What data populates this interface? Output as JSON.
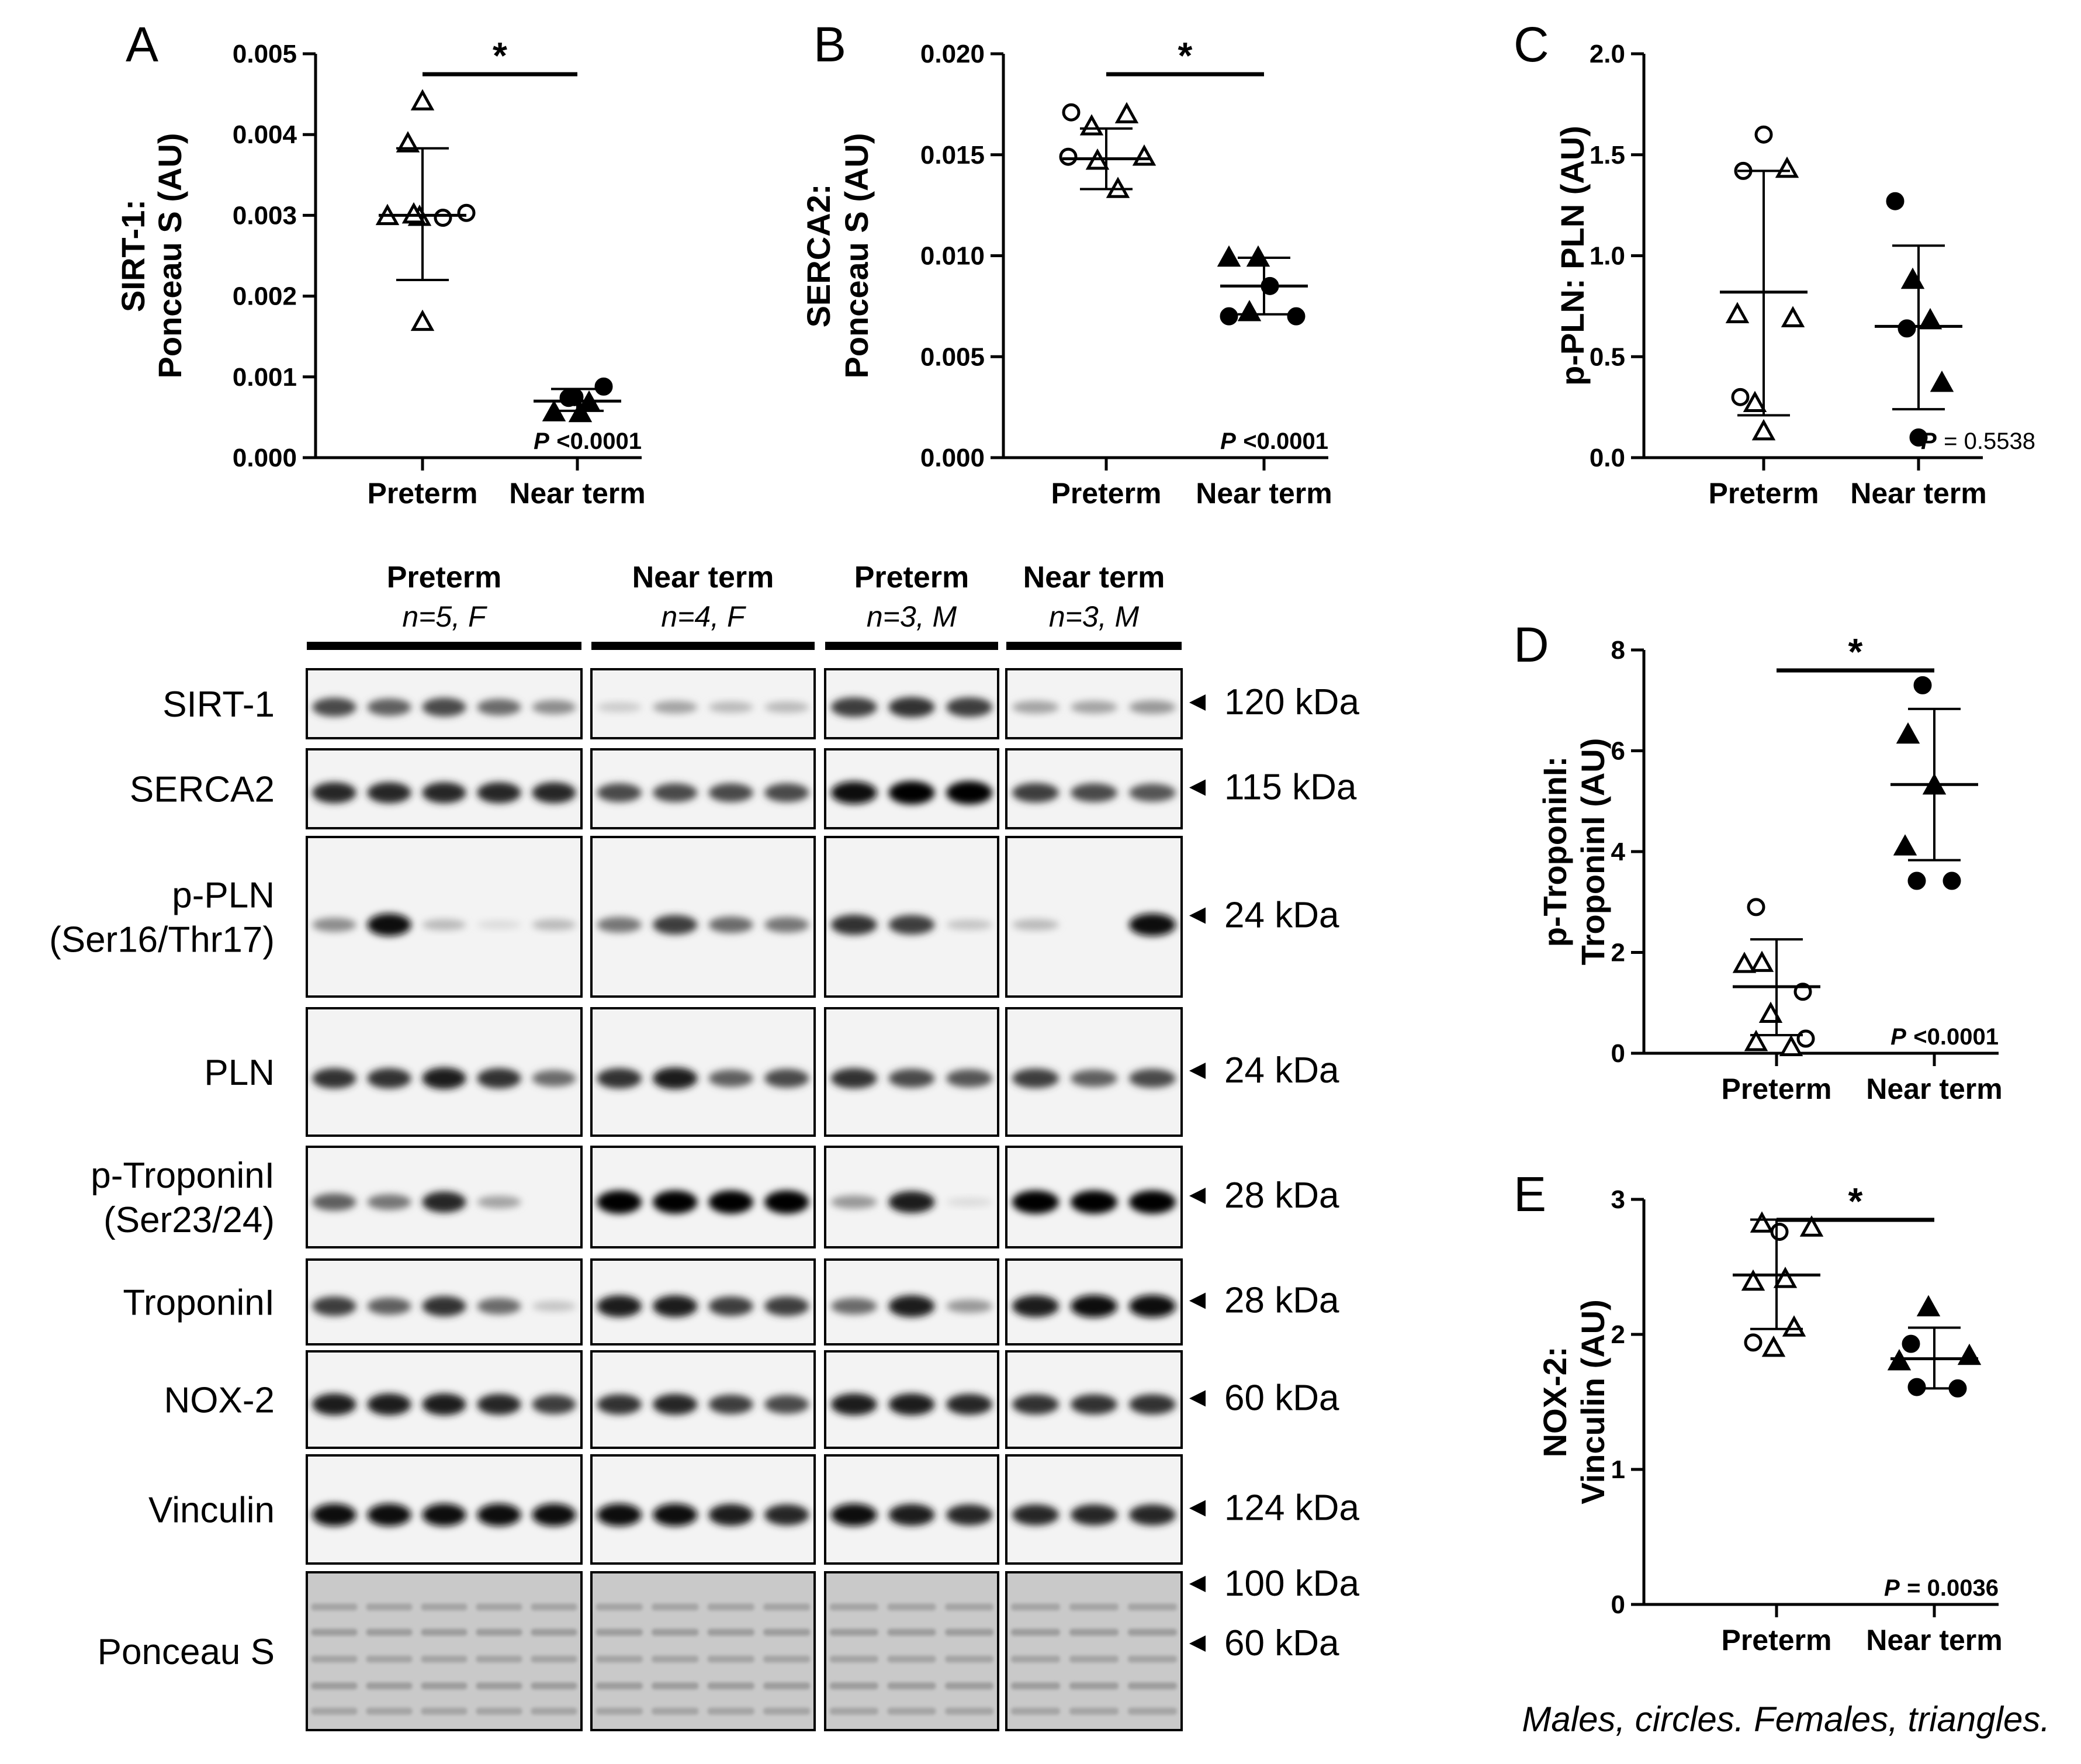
{
  "legend": "Males, circles. Females, triangles.",
  "colors": {
    "male_marker": "#000000",
    "female_marker": "#000000",
    "axis": "#000000",
    "blot_bg": "#f2f2f2"
  },
  "chart_data": [
    {
      "panel": "A",
      "type": "scatter",
      "ylabel_lines": [
        "SIRT-1:",
        "Ponceau S (AU)"
      ],
      "categories": [
        "Preterm",
        "Near term"
      ],
      "ylim": [
        0,
        0.005
      ],
      "yticks": [
        "0.000",
        "0.001",
        "0.002",
        "0.003",
        "0.004",
        "0.005"
      ],
      "ytick_values": [
        0,
        0.001,
        0.002,
        0.003,
        0.004,
        0.005
      ],
      "significance": "*",
      "p_label": "P",
      "p_text": "<0.0001",
      "groups": [
        {
          "name": "Preterm",
          "mean": 0.003,
          "sd_low": 0.0022,
          "sd_high": 0.00383,
          "points": [
            {
              "value": 0.00441,
              "sex": "F"
            },
            {
              "value": 0.00389,
              "sex": "F"
            },
            {
              "value": 0.00299,
              "sex": "F"
            },
            {
              "value": 0.00297,
              "sex": "M"
            },
            {
              "value": 0.00303,
              "sex": "M"
            },
            {
              "value": 0.00298,
              "sex": "F"
            },
            {
              "value": 0.00301,
              "sex": "F"
            },
            {
              "value": 0.00168,
              "sex": "F"
            }
          ]
        },
        {
          "name": "Near term",
          "mean": 0.0007,
          "sd_low": 0.00058,
          "sd_high": 0.00085,
          "points": [
            {
              "value": 0.00056,
              "sex": "F"
            },
            {
              "value": 0.00075,
              "sex": "M"
            },
            {
              "value": 0.00068,
              "sex": "F"
            },
            {
              "value": 0.00088,
              "sex": "M"
            },
            {
              "value": 0.00055,
              "sex": "F"
            },
            {
              "value": 0.00074,
              "sex": "M"
            }
          ]
        }
      ]
    },
    {
      "panel": "B",
      "type": "scatter",
      "ylabel_lines": [
        "SERCA2:",
        "Ponceau S (AU)"
      ],
      "categories": [
        "Preterm",
        "Near term"
      ],
      "ylim": [
        0,
        0.02
      ],
      "yticks": [
        "0.000",
        "0.005",
        "0.010",
        "0.015",
        "0.020"
      ],
      "ytick_values": [
        0,
        0.005,
        0.01,
        0.015,
        0.02
      ],
      "significance": "*",
      "p_label": "P",
      "p_text": "<0.0001",
      "groups": [
        {
          "name": "Preterm",
          "mean": 0.0148,
          "sd_low": 0.0133,
          "sd_high": 0.0163,
          "points": [
            {
              "value": 0.0171,
              "sex": "M"
            },
            {
              "value": 0.017,
              "sex": "F"
            },
            {
              "value": 0.0164,
              "sex": "F"
            },
            {
              "value": 0.0149,
              "sex": "M"
            },
            {
              "value": 0.0147,
              "sex": "F"
            },
            {
              "value": 0.0149,
              "sex": "F"
            },
            {
              "value": 0.0133,
              "sex": "F"
            }
          ]
        },
        {
          "name": "Near term",
          "mean": 0.0085,
          "sd_low": 0.0071,
          "sd_high": 0.0099,
          "points": [
            {
              "value": 0.0099,
              "sex": "F"
            },
            {
              "value": 0.0099,
              "sex": "F"
            },
            {
              "value": 0.0085,
              "sex": "M"
            },
            {
              "value": 0.0072,
              "sex": "F"
            },
            {
              "value": 0.007,
              "sex": "M"
            },
            {
              "value": 0.007,
              "sex": "M"
            }
          ]
        }
      ]
    },
    {
      "panel": "C",
      "type": "scatter",
      "ylabel_lines": [
        "p-PLN: PLN (AU)"
      ],
      "categories": [
        "Preterm",
        "Near term"
      ],
      "ylim": [
        0,
        2
      ],
      "yticks": [
        "0.0",
        "0.5",
        "1.0",
        "1.5",
        "2.0"
      ],
      "ytick_values": [
        0,
        0.5,
        1,
        1.5,
        2
      ],
      "significance": "",
      "p_label": "P",
      "p_text": "= 0.5538",
      "groups": [
        {
          "name": "Preterm",
          "mean": 0.82,
          "sd_low": 0.21,
          "sd_high": 1.42,
          "points": [
            {
              "value": 1.6,
              "sex": "M"
            },
            {
              "value": 1.42,
              "sex": "M"
            },
            {
              "value": 1.43,
              "sex": "F"
            },
            {
              "value": 0.71,
              "sex": "F"
            },
            {
              "value": 0.69,
              "sex": "F"
            },
            {
              "value": 0.3,
              "sex": "M"
            },
            {
              "value": 0.27,
              "sex": "F"
            },
            {
              "value": 0.13,
              "sex": "F"
            }
          ]
        },
        {
          "name": "Near term",
          "mean": 0.65,
          "sd_low": 0.24,
          "sd_high": 1.05,
          "points": [
            {
              "value": 1.27,
              "sex": "M"
            },
            {
              "value": 0.88,
              "sex": "F"
            },
            {
              "value": 0.68,
              "sex": "F"
            },
            {
              "value": 0.64,
              "sex": "M"
            },
            {
              "value": 0.37,
              "sex": "F"
            },
            {
              "value": 0.1,
              "sex": "M"
            }
          ]
        }
      ]
    },
    {
      "panel": "D",
      "type": "scatter",
      "ylabel_lines": [
        "p-TroponinI:",
        "TroponinI (AU)"
      ],
      "categories": [
        "Preterm",
        "Near term"
      ],
      "ylim": [
        0,
        8
      ],
      "yticks": [
        "0",
        "2",
        "4",
        "6",
        "8"
      ],
      "ytick_values": [
        0,
        2,
        4,
        6,
        8
      ],
      "significance": "*",
      "p_label": "P",
      "p_text": "<0.0001",
      "groups": [
        {
          "name": "Preterm",
          "mean": 1.32,
          "sd_low": 0.36,
          "sd_high": 2.26,
          "points": [
            {
              "value": 2.9,
              "sex": "M"
            },
            {
              "value": 1.79,
              "sex": "F"
            },
            {
              "value": 1.77,
              "sex": "F"
            },
            {
              "value": 1.22,
              "sex": "M"
            },
            {
              "value": 0.78,
              "sex": "F"
            },
            {
              "value": 0.22,
              "sex": "F"
            },
            {
              "value": 0.29,
              "sex": "M"
            },
            {
              "value": 0.12,
              "sex": "F"
            }
          ]
        },
        {
          "name": "Near term",
          "mean": 5.33,
          "sd_low": 3.83,
          "sd_high": 6.83,
          "points": [
            {
              "value": 7.3,
              "sex": "M"
            },
            {
              "value": 6.32,
              "sex": "F"
            },
            {
              "value": 5.31,
              "sex": "F"
            },
            {
              "value": 4.1,
              "sex": "F"
            },
            {
              "value": 3.42,
              "sex": "M"
            },
            {
              "value": 3.42,
              "sex": "M"
            }
          ]
        }
      ]
    },
    {
      "panel": "E",
      "type": "scatter",
      "ylabel_lines": [
        "NOX-2:",
        "Vinculin (AU)"
      ],
      "categories": [
        "Preterm",
        "Near term"
      ],
      "ylim": [
        0,
        3
      ],
      "yticks": [
        "0",
        "1",
        "2",
        "3"
      ],
      "ytick_values": [
        0,
        1,
        2,
        3
      ],
      "significance": "*",
      "p_label": "P",
      "p_text": "= 0.0036",
      "groups": [
        {
          "name": "Preterm",
          "mean": 2.44,
          "sd_low": 2.04,
          "sd_high": 2.85,
          "points": [
            {
              "value": 2.82,
              "sex": "F"
            },
            {
              "value": 2.76,
              "sex": "M"
            },
            {
              "value": 2.79,
              "sex": "F"
            },
            {
              "value": 2.41,
              "sex": "F"
            },
            {
              "value": 2.39,
              "sex": "F"
            },
            {
              "value": 1.9,
              "sex": "F"
            },
            {
              "value": 1.94,
              "sex": "M"
            },
            {
              "value": 2.05,
              "sex": "F"
            }
          ]
        },
        {
          "name": "Near term",
          "mean": 1.82,
          "sd_low": 1.6,
          "sd_high": 2.05,
          "points": [
            {
              "value": 2.2,
              "sex": "F"
            },
            {
              "value": 1.93,
              "sex": "M"
            },
            {
              "value": 1.84,
              "sex": "F"
            },
            {
              "value": 1.8,
              "sex": "F"
            },
            {
              "value": 1.6,
              "sex": "M"
            },
            {
              "value": 1.61,
              "sex": "M"
            }
          ]
        }
      ]
    }
  ],
  "blot": {
    "groups": [
      {
        "title": "Preterm",
        "n": "n=5, F",
        "lanes": 5
      },
      {
        "title": "Near term",
        "n": "n=4, F",
        "lanes": 4
      },
      {
        "title": "Preterm",
        "n": "n=3, M",
        "lanes": 3
      },
      {
        "title": "Near term",
        "n": "n=3, M",
        "lanes": 3
      }
    ],
    "rows": [
      {
        "label": [
          "SIRT-1"
        ],
        "kda": [
          "120 kDa"
        ],
        "intensity": [
          [
            0.7,
            0.6,
            0.7,
            0.55,
            0.4
          ],
          [
            0.12,
            0.3,
            0.2,
            0.2
          ],
          [
            0.75,
            0.8,
            0.75
          ],
          [
            0.3,
            0.3,
            0.35
          ]
        ]
      },
      {
        "label": [
          "SERCA2"
        ],
        "kda": [
          "115 kDa"
        ],
        "intensity": [
          [
            0.85,
            0.85,
            0.85,
            0.85,
            0.85
          ],
          [
            0.7,
            0.7,
            0.7,
            0.7
          ],
          [
            0.95,
            1,
            1
          ],
          [
            0.75,
            0.7,
            0.65
          ]
        ]
      },
      {
        "label": [
          "p-PLN",
          "(Ser16/Thr17)"
        ],
        "kda": [
          "24 kDa"
        ],
        "intensity": [
          [
            0.4,
            0.95,
            0.2,
            0.05,
            0.2
          ],
          [
            0.5,
            0.75,
            0.55,
            0.5
          ],
          [
            0.8,
            0.75,
            0.15
          ],
          [
            0.2,
            0.0,
            0.95
          ]
        ]
      },
      {
        "label": [
          "PLN"
        ],
        "kda": [
          "24 kDa"
        ],
        "intensity": [
          [
            0.8,
            0.8,
            0.9,
            0.8,
            0.55
          ],
          [
            0.8,
            0.9,
            0.6,
            0.7
          ],
          [
            0.8,
            0.7,
            0.65
          ],
          [
            0.75,
            0.6,
            0.7
          ]
        ]
      },
      {
        "label": [
          "p-TroponinI",
          "(Ser23/24)"
        ],
        "kda": [
          "28 kDa"
        ],
        "intensity": [
          [
            0.6,
            0.5,
            0.85,
            0.3,
            0.0
          ],
          [
            1,
            1,
            1,
            1
          ],
          [
            0.35,
            0.9,
            0.05
          ],
          [
            1,
            1,
            1
          ]
        ]
      },
      {
        "label": [
          "TroponinI"
        ],
        "kda": [
          "28 kDa"
        ],
        "intensity": [
          [
            0.75,
            0.6,
            0.8,
            0.55,
            0.15
          ],
          [
            0.9,
            0.9,
            0.75,
            0.75
          ],
          [
            0.55,
            0.9,
            0.35
          ],
          [
            0.9,
            0.95,
            0.95
          ]
        ]
      },
      {
        "label": [
          "NOX-2"
        ],
        "kda": [
          "60 kDa"
        ],
        "intensity": [
          [
            0.9,
            0.9,
            0.9,
            0.85,
            0.75
          ],
          [
            0.8,
            0.85,
            0.75,
            0.7
          ],
          [
            0.9,
            0.9,
            0.85
          ],
          [
            0.8,
            0.8,
            0.8
          ]
        ]
      },
      {
        "label": [
          "Vinculin"
        ],
        "kda": [
          "124 kDa"
        ],
        "intensity": [
          [
            0.95,
            0.95,
            0.95,
            0.95,
            0.95
          ],
          [
            0.95,
            0.95,
            0.9,
            0.85
          ],
          [
            0.95,
            0.9,
            0.85
          ],
          [
            0.85,
            0.85,
            0.85
          ]
        ]
      },
      {
        "label": [
          "Ponceau S"
        ],
        "kda": [
          "100 kDa",
          "60 kDa"
        ],
        "ponceau": true,
        "intensity": [
          [
            0.5,
            0.5,
            0.5,
            0.5,
            0.5
          ],
          [
            0.5,
            0.5,
            0.5,
            0.5
          ],
          [
            0.5,
            0.5,
            0.5
          ],
          [
            0.5,
            0.5,
            0.5
          ]
        ]
      }
    ]
  }
}
